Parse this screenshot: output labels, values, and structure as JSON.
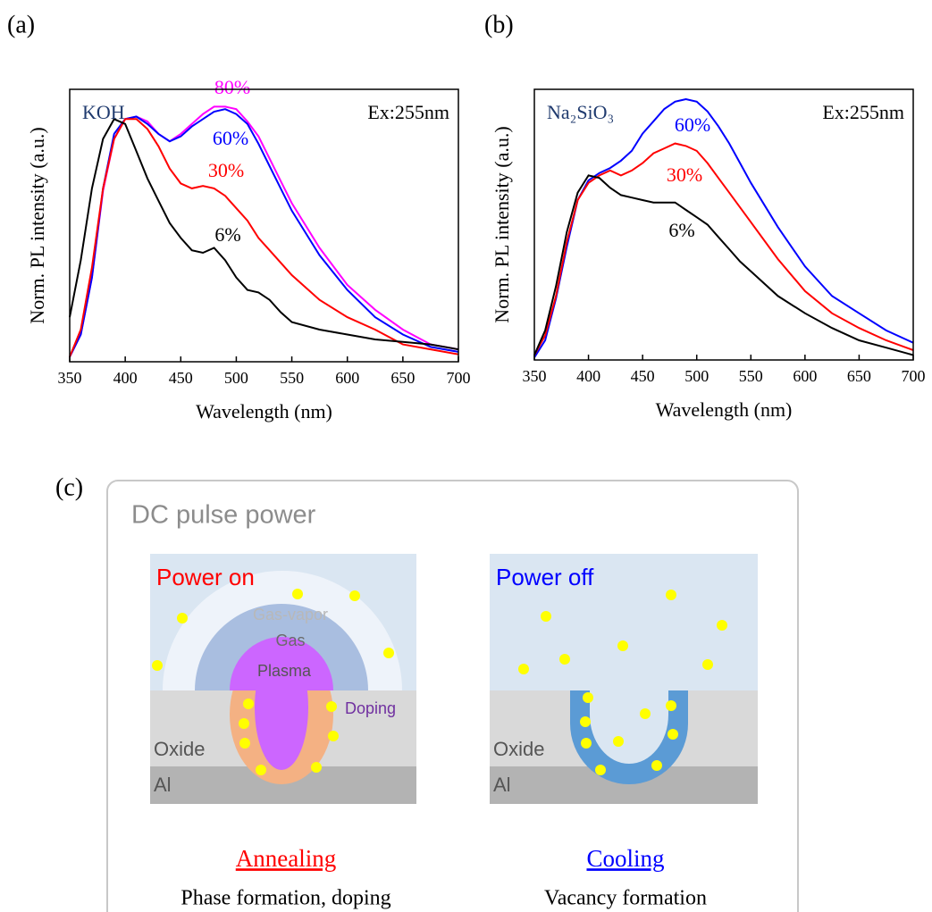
{
  "chart_data": [
    {
      "type": "line",
      "label": "(a)",
      "annotations": [
        "KOH",
        "Ex:255nm"
      ],
      "x_label": "Wavelength (nm)",
      "y_label": "Norm. PL intensity (a.u.)",
      "x": [
        350,
        360,
        370,
        380,
        390,
        400,
        410,
        420,
        430,
        440,
        450,
        460,
        470,
        480,
        490,
        500,
        510,
        520,
        530,
        540,
        550,
        575,
        600,
        625,
        650,
        675,
        700
      ],
      "xlim": [
        350,
        700
      ],
      "xticks": [
        350,
        400,
        450,
        500,
        550,
        600,
        650,
        700
      ],
      "ylim": [
        0,
        1.1
      ],
      "series": [
        {
          "name": "80%",
          "color": "#ff00ff",
          "values": [
            0.02,
            0.11,
            0.34,
            0.69,
            0.9,
            0.98,
            0.99,
            0.97,
            0.92,
            0.89,
            0.92,
            0.96,
            1.0,
            1.03,
            1.03,
            1.02,
            0.97,
            0.91,
            0.82,
            0.73,
            0.64,
            0.46,
            0.31,
            0.21,
            0.13,
            0.07,
            0.05
          ]
        },
        {
          "name": "60%",
          "color": "#0000ff",
          "values": [
            0.02,
            0.11,
            0.34,
            0.7,
            0.92,
            0.98,
            0.99,
            0.96,
            0.92,
            0.89,
            0.91,
            0.95,
            0.98,
            1.01,
            1.02,
            1.0,
            0.96,
            0.88,
            0.79,
            0.7,
            0.61,
            0.43,
            0.29,
            0.18,
            0.11,
            0.06,
            0.04
          ]
        },
        {
          "name": "30%",
          "color": "#ff0000",
          "values": [
            0.02,
            0.13,
            0.38,
            0.7,
            0.9,
            0.98,
            0.98,
            0.94,
            0.87,
            0.78,
            0.72,
            0.7,
            0.71,
            0.7,
            0.67,
            0.62,
            0.57,
            0.5,
            0.45,
            0.4,
            0.35,
            0.25,
            0.18,
            0.13,
            0.07,
            0.05,
            0.03
          ]
        },
        {
          "name": "6%",
          "color": "#000000",
          "values": [
            0.18,
            0.41,
            0.7,
            0.9,
            0.98,
            0.96,
            0.85,
            0.74,
            0.65,
            0.56,
            0.5,
            0.45,
            0.44,
            0.46,
            0.41,
            0.34,
            0.29,
            0.28,
            0.25,
            0.2,
            0.16,
            0.13,
            0.11,
            0.09,
            0.08,
            0.07,
            0.05
          ]
        }
      ]
    },
    {
      "type": "line",
      "label": "(b)",
      "annotations": [
        "Na₂SiO₃",
        "Ex:255nm"
      ],
      "x_label": "Wavelength (nm)",
      "y_label": "Norm. PL intensity (a.u.)",
      "x": [
        350,
        360,
        370,
        380,
        390,
        400,
        410,
        420,
        430,
        440,
        450,
        460,
        470,
        480,
        490,
        500,
        510,
        520,
        530,
        540,
        550,
        575,
        600,
        625,
        650,
        675,
        700
      ],
      "xlim": [
        350,
        700
      ],
      "xticks": [
        350,
        400,
        450,
        500,
        550,
        600,
        650,
        700
      ],
      "ylim": [
        0,
        1.1
      ],
      "series": [
        {
          "name": "60%",
          "color": "#0000ff",
          "values": [
            0.01,
            0.08,
            0.25,
            0.46,
            0.65,
            0.73,
            0.76,
            0.78,
            0.81,
            0.85,
            0.92,
            0.97,
            1.02,
            1.05,
            1.06,
            1.05,
            1.01,
            0.95,
            0.88,
            0.8,
            0.72,
            0.54,
            0.38,
            0.26,
            0.19,
            0.12,
            0.07
          ]
        },
        {
          "name": "30%",
          "color": "#ff0000",
          "values": [
            0.02,
            0.1,
            0.26,
            0.48,
            0.65,
            0.72,
            0.75,
            0.77,
            0.75,
            0.77,
            0.8,
            0.84,
            0.86,
            0.88,
            0.87,
            0.85,
            0.8,
            0.74,
            0.68,
            0.62,
            0.56,
            0.41,
            0.28,
            0.19,
            0.13,
            0.08,
            0.04
          ]
        },
        {
          "name": "6%",
          "color": "#000000",
          "values": [
            0.02,
            0.12,
            0.3,
            0.52,
            0.68,
            0.75,
            0.74,
            0.7,
            0.67,
            0.66,
            0.65,
            0.64,
            0.64,
            0.64,
            0.61,
            0.58,
            0.55,
            0.5,
            0.45,
            0.4,
            0.36,
            0.26,
            0.19,
            0.13,
            0.08,
            0.05,
            0.02
          ]
        }
      ]
    }
  ],
  "diagram": {
    "label": "(c)",
    "title": "DC pulse power",
    "panels": [
      {
        "state": "Power on",
        "regions": [
          "Gas-vapor",
          "Gas",
          "Plasma",
          "Doping",
          "Oxide",
          "Al"
        ],
        "process": "Annealing",
        "description": "Phase formation, doping"
      },
      {
        "state": "Power off",
        "regions": [
          "Oxide",
          "Al"
        ],
        "process": "Cooling",
        "description": "Vacancy formation"
      }
    ]
  }
}
